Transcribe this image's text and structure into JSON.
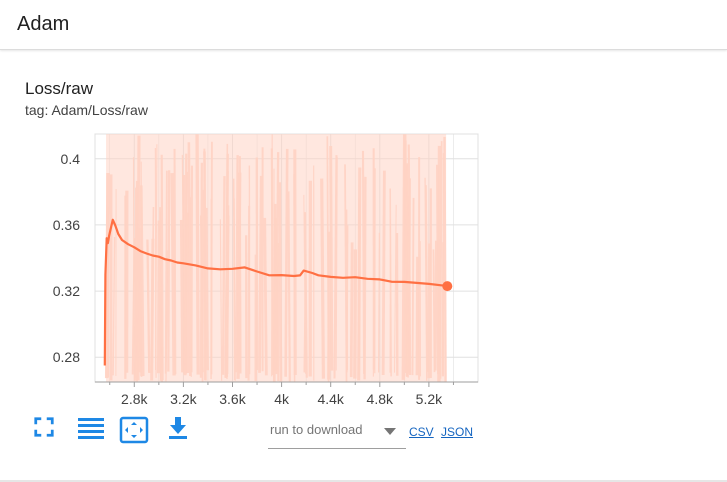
{
  "header": {
    "title": "Adam"
  },
  "card": {
    "title": "Loss/raw",
    "tag": "tag: Adam/Loss/raw"
  },
  "toolbar": {
    "icons": [
      "fullscreen-icon",
      "toggle-log-scale-icon",
      "fit-domain-icon",
      "download-icon"
    ],
    "run_placeholder": "run to download",
    "csv_label": "CSV",
    "json_label": "JSON"
  },
  "colors": {
    "series": "#ff7043",
    "raw_band": "#ffd3c4",
    "toolbar_icon": "#1e88e5",
    "link": "#1565c0",
    "grid": "#e0e0e0"
  },
  "chart_data": {
    "type": "line",
    "title": "Loss/raw",
    "xlabel": "",
    "ylabel": "",
    "xlim": [
      2480,
      5600
    ],
    "ylim": [
      0.265,
      0.415
    ],
    "x_ticks": [
      2800,
      3200,
      3600,
      4000,
      4400,
      4800,
      5200
    ],
    "x_tick_labels": [
      "2.8k",
      "3.2k",
      "3.6k",
      "4k",
      "4.4k",
      "4.8k",
      "5.2k"
    ],
    "y_ticks": [
      0.28,
      0.32,
      0.36,
      0.4
    ],
    "y_tick_labels": [
      "0.28",
      "0.32",
      "0.36",
      "0.4"
    ],
    "grid": true,
    "series": [
      {
        "values_smoothed": [
          [
            2560,
            0.275
          ],
          [
            2565,
            0.33
          ],
          [
            2575,
            0.352
          ],
          [
            2585,
            0.349
          ],
          [
            2595,
            0.353
          ],
          [
            2610,
            0.358
          ],
          [
            2625,
            0.363
          ],
          [
            2645,
            0.36
          ],
          [
            2670,
            0.355
          ],
          [
            2700,
            0.351
          ],
          [
            2750,
            0.348
          ],
          [
            2800,
            0.346
          ],
          [
            2850,
            0.344
          ],
          [
            2900,
            0.343
          ],
          [
            2950,
            0.342
          ],
          [
            3000,
            0.341
          ],
          [
            3050,
            0.339
          ],
          [
            3100,
            0.338
          ],
          [
            3150,
            0.337
          ],
          [
            3200,
            0.337
          ],
          [
            3300,
            0.336
          ],
          [
            3400,
            0.334
          ],
          [
            3500,
            0.333
          ],
          [
            3600,
            0.333
          ],
          [
            3700,
            0.334
          ],
          [
            3800,
            0.332
          ],
          [
            3900,
            0.33
          ],
          [
            4000,
            0.33
          ],
          [
            4100,
            0.329
          ],
          [
            4150,
            0.329
          ],
          [
            4180,
            0.332
          ],
          [
            4250,
            0.331
          ],
          [
            4300,
            0.33
          ],
          [
            4400,
            0.329
          ],
          [
            4500,
            0.328
          ],
          [
            4600,
            0.328
          ],
          [
            4700,
            0.327
          ],
          [
            4800,
            0.327
          ],
          [
            4900,
            0.326
          ],
          [
            5000,
            0.326
          ],
          [
            5100,
            0.325
          ],
          [
            5200,
            0.324
          ],
          [
            5300,
            0.323
          ],
          [
            5350,
            0.323
          ]
        ],
        "raw_band": {
          "x_range": [
            2570,
            5340
          ],
          "y_range": [
            0.265,
            0.415
          ]
        }
      }
    ]
  }
}
